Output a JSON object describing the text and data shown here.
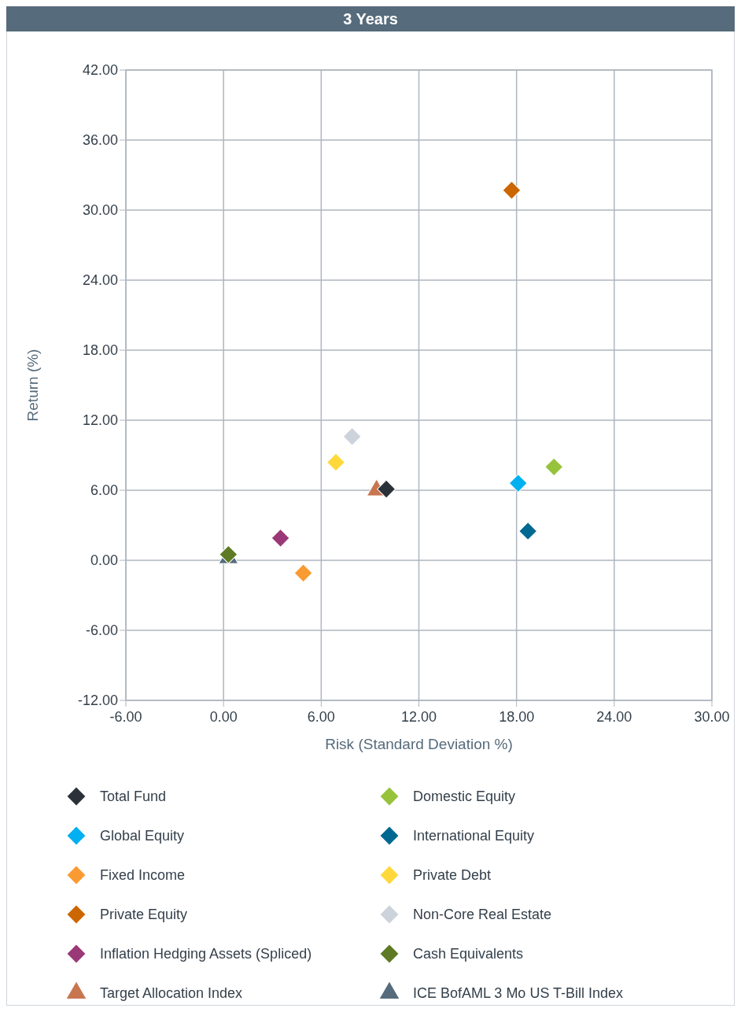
{
  "chart_data": {
    "type": "scatter",
    "title": "3 Years",
    "xlabel": "Risk (Standard Deviation %)",
    "ylabel": "Return (%)",
    "xlim": [
      -6,
      30
    ],
    "xticks": [
      {
        "value": -6,
        "label": "-6.00"
      },
      {
        "value": 0,
        "label": "0.00"
      },
      {
        "value": 6,
        "label": "6.00"
      },
      {
        "value": 12,
        "label": "12.00"
      },
      {
        "value": 18,
        "label": "18.00"
      },
      {
        "value": 24,
        "label": "24.00"
      },
      {
        "value": 30,
        "label": "30.00"
      }
    ],
    "ylim": [
      -12,
      42
    ],
    "yticks": [
      {
        "value": -12,
        "label": "-12.00"
      },
      {
        "value": -6,
        "label": "-6.00"
      },
      {
        "value": 0,
        "label": "0.00"
      },
      {
        "value": 6,
        "label": "6.00"
      },
      {
        "value": 12,
        "label": "12.00"
      },
      {
        "value": 18,
        "label": "18.00"
      },
      {
        "value": 24,
        "label": "24.00"
      },
      {
        "value": 30,
        "label": "30.00"
      },
      {
        "value": 36,
        "label": "36.00"
      },
      {
        "value": 42,
        "label": "42.00"
      }
    ],
    "grid": true,
    "legend": "bottom",
    "series": [
      {
        "name": "Total Fund",
        "color": "#2b3139",
        "marker": "diamond",
        "x": [
          10.0
        ],
        "values": [
          6.1
        ]
      },
      {
        "name": "Domestic Equity",
        "color": "#97c33c",
        "marker": "diamond",
        "x": [
          20.3
        ],
        "values": [
          8.0
        ]
      },
      {
        "name": "Global Equity",
        "color": "#00b0f0",
        "marker": "diamond",
        "x": [
          18.1
        ],
        "values": [
          6.6
        ]
      },
      {
        "name": "International Equity",
        "color": "#006891",
        "marker": "diamond",
        "x": [
          18.7
        ],
        "values": [
          2.5
        ]
      },
      {
        "name": "Fixed Income",
        "color": "#f99b32",
        "marker": "diamond",
        "x": [
          4.9
        ],
        "values": [
          -1.1
        ]
      },
      {
        "name": "Private Debt",
        "color": "#ffd93b",
        "marker": "diamond",
        "x": [
          6.9
        ],
        "values": [
          8.4
        ]
      },
      {
        "name": "Private Equity",
        "color": "#cc6600",
        "marker": "diamond",
        "x": [
          17.7
        ],
        "values": [
          31.7
        ]
      },
      {
        "name": "Non-Core Real Estate",
        "color": "#cdd3da",
        "marker": "diamond",
        "x": [
          7.9
        ],
        "values": [
          10.6
        ]
      },
      {
        "name": "Inflation Hedging Assets (Spliced)",
        "color": "#9b3877",
        "marker": "diamond",
        "x": [
          3.5
        ],
        "values": [
          1.9
        ]
      },
      {
        "name": "Cash Equivalents",
        "color": "#5e7a24",
        "marker": "diamond",
        "x": [
          0.3
        ],
        "values": [
          0.5
        ]
      },
      {
        "name": "Target Allocation Index",
        "color": "#c87650",
        "marker": "triangle",
        "x": [
          9.4
        ],
        "values": [
          6.0
        ]
      },
      {
        "name": "ICE BofAML 3 Mo US T-Bill Index",
        "color": "#566b7b",
        "marker": "triangle",
        "x": [
          0.3
        ],
        "values": [
          0.2
        ]
      }
    ]
  }
}
